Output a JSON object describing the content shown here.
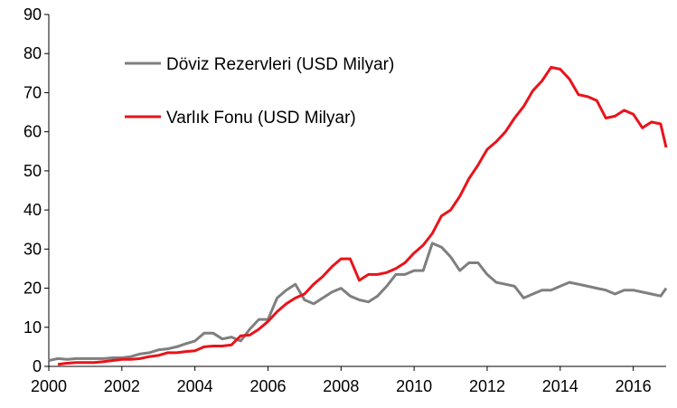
{
  "chart_data": {
    "type": "line",
    "title": "",
    "xlabel": "",
    "ylabel": "",
    "xlim": [
      2000,
      2016.9
    ],
    "ylim": [
      0,
      90
    ],
    "x_ticks": [
      "2000",
      "2002",
      "2004",
      "2006",
      "2008",
      "2010",
      "2012",
      "2014",
      "2016"
    ],
    "y_ticks": [
      "0",
      "10",
      "20",
      "30",
      "40",
      "50",
      "60",
      "70",
      "80",
      "90"
    ],
    "grid": false,
    "legend_position": "top-left",
    "series": [
      {
        "name": "Döviz Rezervleri (USD Milyar)",
        "color": "#7f7f7f",
        "points": [
          [
            2000.0,
            1.5
          ],
          [
            2000.25,
            2.0
          ],
          [
            2000.5,
            1.8
          ],
          [
            2000.75,
            2.0
          ],
          [
            2001.0,
            2.0
          ],
          [
            2001.25,
            2.0
          ],
          [
            2001.5,
            2.0
          ],
          [
            2001.75,
            2.2
          ],
          [
            2002.0,
            2.2
          ],
          [
            2002.25,
            2.5
          ],
          [
            2002.5,
            3.2
          ],
          [
            2002.75,
            3.5
          ],
          [
            2003.0,
            4.2
          ],
          [
            2003.25,
            4.5
          ],
          [
            2003.5,
            5.0
          ],
          [
            2003.75,
            5.8
          ],
          [
            2004.0,
            6.5
          ],
          [
            2004.25,
            8.5
          ],
          [
            2004.5,
            8.5
          ],
          [
            2004.75,
            7.0
          ],
          [
            2005.0,
            7.5
          ],
          [
            2005.25,
            6.5
          ],
          [
            2005.5,
            9.5
          ],
          [
            2005.75,
            12.0
          ],
          [
            2006.0,
            12.0
          ],
          [
            2006.25,
            17.5
          ],
          [
            2006.5,
            19.5
          ],
          [
            2006.75,
            21.0
          ],
          [
            2007.0,
            17.0
          ],
          [
            2007.25,
            16.0
          ],
          [
            2007.5,
            17.5
          ],
          [
            2007.75,
            19.0
          ],
          [
            2008.0,
            20.0
          ],
          [
            2008.25,
            18.0
          ],
          [
            2008.5,
            17.0
          ],
          [
            2008.75,
            16.5
          ],
          [
            2009.0,
            18.0
          ],
          [
            2009.25,
            20.5
          ],
          [
            2009.5,
            23.5
          ],
          [
            2009.75,
            23.5
          ],
          [
            2010.0,
            24.5
          ],
          [
            2010.25,
            24.5
          ],
          [
            2010.5,
            31.5
          ],
          [
            2010.75,
            30.5
          ],
          [
            2011.0,
            28.0
          ],
          [
            2011.25,
            24.5
          ],
          [
            2011.5,
            26.5
          ],
          [
            2011.75,
            26.5
          ],
          [
            2012.0,
            23.5
          ],
          [
            2012.25,
            21.5
          ],
          [
            2012.5,
            21.0
          ],
          [
            2012.75,
            20.5
          ],
          [
            2013.0,
            17.5
          ],
          [
            2013.25,
            18.5
          ],
          [
            2013.5,
            19.5
          ],
          [
            2013.75,
            19.5
          ],
          [
            2014.0,
            20.5
          ],
          [
            2014.25,
            21.5
          ],
          [
            2014.5,
            21.0
          ],
          [
            2014.75,
            20.5
          ],
          [
            2015.0,
            20.0
          ],
          [
            2015.25,
            19.5
          ],
          [
            2015.5,
            18.5
          ],
          [
            2015.75,
            19.5
          ],
          [
            2016.0,
            19.5
          ],
          [
            2016.25,
            19.0
          ],
          [
            2016.5,
            18.5
          ],
          [
            2016.75,
            18.0
          ],
          [
            2016.9,
            20.0
          ]
        ]
      },
      {
        "name": "Varlık Fonu (USD Milyar)",
        "color": "#e8141b",
        "points": [
          [
            2000.25,
            0.5
          ],
          [
            2000.5,
            0.8
          ],
          [
            2000.75,
            1.0
          ],
          [
            2001.0,
            1.0
          ],
          [
            2001.25,
            1.0
          ],
          [
            2001.5,
            1.2
          ],
          [
            2001.75,
            1.5
          ],
          [
            2002.0,
            1.8
          ],
          [
            2002.25,
            1.8
          ],
          [
            2002.5,
            2.0
          ],
          [
            2002.75,
            2.5
          ],
          [
            2003.0,
            2.8
          ],
          [
            2003.25,
            3.5
          ],
          [
            2003.5,
            3.5
          ],
          [
            2003.75,
            3.8
          ],
          [
            2004.0,
            4.0
          ],
          [
            2004.25,
            5.0
          ],
          [
            2004.5,
            5.2
          ],
          [
            2004.75,
            5.2
          ],
          [
            2005.0,
            5.5
          ],
          [
            2005.25,
            7.8
          ],
          [
            2005.5,
            8.0
          ],
          [
            2005.75,
            9.5
          ],
          [
            2006.0,
            11.5
          ],
          [
            2006.25,
            14.0
          ],
          [
            2006.5,
            16.0
          ],
          [
            2006.75,
            17.5
          ],
          [
            2007.0,
            18.5
          ],
          [
            2007.25,
            21.0
          ],
          [
            2007.5,
            23.0
          ],
          [
            2007.75,
            25.5
          ],
          [
            2008.0,
            27.5
          ],
          [
            2008.25,
            27.5
          ],
          [
            2008.5,
            22.0
          ],
          [
            2008.75,
            23.5
          ],
          [
            2009.0,
            23.5
          ],
          [
            2009.25,
            24.0
          ],
          [
            2009.5,
            25.0
          ],
          [
            2009.75,
            26.5
          ],
          [
            2010.0,
            29.0
          ],
          [
            2010.25,
            31.0
          ],
          [
            2010.5,
            34.0
          ],
          [
            2010.75,
            38.5
          ],
          [
            2011.0,
            40.0
          ],
          [
            2011.25,
            43.5
          ],
          [
            2011.5,
            48.0
          ],
          [
            2011.75,
            51.5
          ],
          [
            2012.0,
            55.5
          ],
          [
            2012.25,
            57.5
          ],
          [
            2012.5,
            60.0
          ],
          [
            2012.75,
            63.5
          ],
          [
            2013.0,
            66.5
          ],
          [
            2013.25,
            70.5
          ],
          [
            2013.5,
            73.0
          ],
          [
            2013.75,
            76.5
          ],
          [
            2014.0,
            76.0
          ],
          [
            2014.25,
            73.5
          ],
          [
            2014.5,
            69.5
          ],
          [
            2014.75,
            69.0
          ],
          [
            2015.0,
            68.0
          ],
          [
            2015.25,
            63.5
          ],
          [
            2015.5,
            64.0
          ],
          [
            2015.75,
            65.5
          ],
          [
            2016.0,
            64.5
          ],
          [
            2016.25,
            61.0
          ],
          [
            2016.5,
            62.5
          ],
          [
            2016.75,
            62.0
          ],
          [
            2016.9,
            56.0
          ]
        ]
      }
    ]
  }
}
